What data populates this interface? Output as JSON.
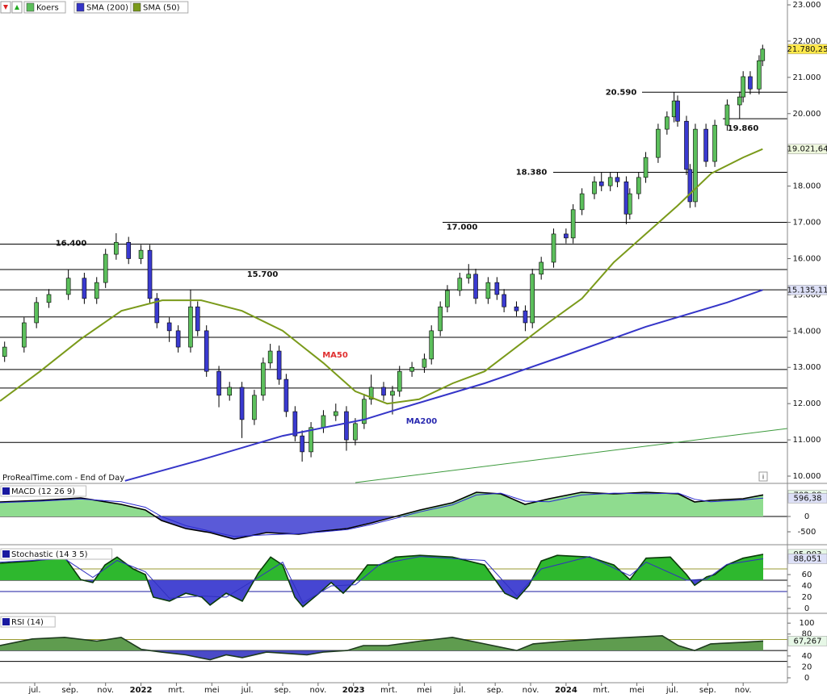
{
  "chart_data": [
    {
      "type": "candlestick",
      "name": "Koers",
      "up_color": "#5cbf5c",
      "down_color": "#3a3ad0",
      "source": "ProRealTime.com - End of Day",
      "xlim": [
        5.04,
        49.5
      ],
      "xticks": [
        {
          "value": 7,
          "label": "jul."
        },
        {
          "value": 9,
          "label": "sep."
        },
        {
          "value": 11,
          "label": "nov."
        },
        {
          "value": 13,
          "label": "2022"
        },
        {
          "value": 15,
          "label": "mrt."
        },
        {
          "value": 17,
          "label": "mei"
        },
        {
          "value": 19,
          "label": "jul."
        },
        {
          "value": 21,
          "label": "sep."
        },
        {
          "value": 23,
          "label": "nov."
        },
        {
          "value": 25,
          "label": "2023"
        },
        {
          "value": 27,
          "label": "mrt."
        },
        {
          "value": 29,
          "label": "mei"
        },
        {
          "value": 31,
          "label": "jul."
        },
        {
          "value": 33,
          "label": "sep."
        },
        {
          "value": 35,
          "label": "nov."
        },
        {
          "value": 37,
          "label": "2024"
        },
        {
          "value": 39,
          "label": "mrt."
        },
        {
          "value": 41,
          "label": "mei"
        },
        {
          "value": 43,
          "label": "jul."
        },
        {
          "value": 45,
          "label": "sep."
        },
        {
          "value": 47,
          "label": "nov."
        }
      ],
      "ylim": [
        9822,
        23134
      ],
      "yticks": [
        {
          "value": 23000,
          "label": "23.000"
        },
        {
          "value": 22000,
          "label": "22.000"
        },
        {
          "value": 21000,
          "label": "21.000"
        },
        {
          "value": 20000,
          "label": "20.000"
        },
        {
          "value": 19000,
          "label": "19.000"
        },
        {
          "value": 18000,
          "label": "18.000"
        },
        {
          "value": 17000,
          "label": "17.000"
        },
        {
          "value": 16000,
          "label": "16.000"
        },
        {
          "value": 15000,
          "label": "15.000"
        },
        {
          "value": 14000,
          "label": "14.000"
        },
        {
          "value": 13000,
          "label": "13.000"
        },
        {
          "value": 12000,
          "label": "12.000"
        },
        {
          "value": 11000,
          "label": "11.000"
        },
        {
          "value": 10000,
          "label": "10.000"
        }
      ],
      "x": [
        5.3,
        6.4,
        7.1,
        7.8,
        8.9,
        9.8,
        10.5,
        11,
        11.6,
        12.3,
        13,
        13.5,
        13.9,
        14.6,
        15.1,
        15.8,
        16.2,
        16.7,
        17.4,
        18,
        18.7,
        19.4,
        19.9,
        20.3,
        20.8,
        21.2,
        21.7,
        22.1,
        22.6,
        23.3,
        24,
        24.6,
        25.1,
        25.6,
        26,
        26.7,
        27.2,
        27.6,
        28.3,
        29,
        29.4,
        29.9,
        30.3,
        31,
        31.5,
        31.9,
        32.6,
        33.1,
        33.5,
        34.2,
        34.7,
        35.1,
        35.6,
        36.3,
        37,
        37.4,
        37.9,
        38.6,
        39,
        39.5,
        39.9,
        40.4,
        40.6,
        41.1,
        41.5,
        42.2,
        42.7,
        43.1,
        43.3,
        43.8,
        44,
        44.3,
        44.9,
        45.4,
        46.1,
        46.8,
        47,
        47.4,
        47.9,
        48.1
      ],
      "open": [
        13300,
        13560,
        14230,
        14790,
        15010,
        15460,
        14900,
        15340,
        16120,
        16450,
        16000,
        16230,
        14900,
        14230,
        14010,
        13560,
        14670,
        14010,
        12890,
        12230,
        12450,
        11560,
        12230,
        13120,
        13450,
        12670,
        11780,
        11110,
        10670,
        11340,
        11670,
        11780,
        11000,
        11450,
        12120,
        12450,
        12230,
        12340,
        12890,
        13000,
        13230,
        14010,
        14670,
        15120,
        15460,
        15570,
        14900,
        15340,
        15010,
        14670,
        14560,
        14230,
        15570,
        15900,
        16680,
        16570,
        17350,
        17790,
        18120,
        18010,
        18240,
        18120,
        17230,
        17790,
        18240,
        18790,
        19570,
        19910,
        20350,
        19790,
        18460,
        17570,
        19570,
        18680,
        19680,
        20240,
        20460,
        21020,
        20680,
        21460
      ],
      "high": [
        13710,
        14380,
        14940,
        15160,
        15700,
        15610,
        15490,
        16270,
        16700,
        16600,
        16380,
        16380,
        15050,
        14380,
        14160,
        15150,
        14820,
        14160,
        13040,
        12600,
        12600,
        12380,
        13270,
        13650,
        13600,
        12820,
        11930,
        11260,
        11490,
        11820,
        12000,
        11930,
        11600,
        12270,
        12800,
        12600,
        12490,
        13040,
        13150,
        13380,
        14160,
        14820,
        15270,
        15610,
        15850,
        15720,
        15490,
        15490,
        15160,
        14820,
        14710,
        15720,
        16050,
        16830,
        16830,
        17500,
        17940,
        18270,
        18380,
        18390,
        18390,
        18270,
        17940,
        18390,
        18940,
        19720,
        20060,
        20590,
        20500,
        19940,
        18610,
        19720,
        19720,
        19830,
        20390,
        20610,
        21170,
        21170,
        21610,
        21900
      ],
      "low": [
        13150,
        13410,
        14080,
        14640,
        14860,
        14750,
        14750,
        15190,
        15970,
        15850,
        15850,
        14750,
        14080,
        13700,
        13410,
        13410,
        13860,
        12740,
        11900,
        12080,
        11050,
        11410,
        12080,
        12970,
        12520,
        11630,
        10960,
        10400,
        10520,
        11190,
        11520,
        10700,
        10850,
        11300,
        11970,
        12080,
        11700,
        12190,
        12740,
        12850,
        13080,
        13860,
        14520,
        14970,
        15310,
        14750,
        14750,
        14860,
        14520,
        14410,
        14000,
        14080,
        15420,
        15750,
        16420,
        16420,
        17200,
        17640,
        17860,
        17860,
        17970,
        16950,
        17080,
        17640,
        18090,
        18640,
        19420,
        19760,
        19640,
        18310,
        17400,
        17420,
        18530,
        18530,
        19530,
        19860,
        20310,
        20530,
        20530,
        21310
      ],
      "close": [
        13560,
        14230,
        14790,
        15010,
        15460,
        14900,
        15340,
        16120,
        16450,
        16000,
        16230,
        14900,
        14230,
        14010,
        13560,
        14670,
        14010,
        12890,
        12230,
        12450,
        11560,
        12230,
        13120,
        13450,
        12670,
        11780,
        11110,
        10670,
        11340,
        11670,
        11780,
        11000,
        11450,
        12120,
        12450,
        12230,
        12340,
        12890,
        13000,
        13230,
        14010,
        14670,
        15120,
        15460,
        15570,
        14900,
        15340,
        15010,
        14670,
        14560,
        14230,
        15570,
        15900,
        16680,
        16570,
        17350,
        17790,
        18120,
        18010,
        18240,
        18120,
        17230,
        17790,
        18240,
        18790,
        19570,
        19910,
        20350,
        19790,
        18460,
        17570,
        19570,
        18680,
        19680,
        20240,
        20460,
        21020,
        20680,
        21460,
        21780
      ],
      "series": [
        {
          "name": "SMA (200)",
          "color": "#3535c8",
          "x": [
            12.1,
            16.4,
            21,
            25.6,
            27.8,
            32.4,
            37,
            41.5,
            46.1,
            48.1
          ],
          "values": [
            9870,
            10450,
            11110,
            11560,
            11890,
            12560,
            13340,
            14120,
            14790,
            15135.11
          ]
        },
        {
          "name": "SMA (50)",
          "color": "#7a9a1a",
          "x": [
            5.04,
            7.3,
            9.6,
            11.9,
            14.2,
            16.4,
            18.7,
            21,
            23.3,
            25.1,
            26.9,
            28.7,
            30.6,
            32.4,
            34.2,
            36,
            37.9,
            39.7,
            41.5,
            43.3,
            45.2,
            47,
            48.1
          ],
          "values": [
            12070,
            12890,
            13780,
            14560,
            14850,
            14850,
            14560,
            14010,
            13120,
            12340,
            12000,
            12120,
            12560,
            12890,
            13560,
            14230,
            14900,
            15900,
            16680,
            17460,
            18350,
            18790,
            19021.64
          ]
        }
      ],
      "levels": [
        {
          "value": 20590,
          "label": "20.590"
        },
        {
          "value": 19860,
          "label": "19.860"
        },
        {
          "value": 18380,
          "label": "18.380"
        },
        {
          "value": 17000,
          "label": "17.000"
        },
        {
          "value": 16400,
          "label": "16.400"
        },
        {
          "value": 15700,
          "label": "15.700"
        },
        15140,
        14390,
        13830,
        12940,
        12430,
        10930
      ],
      "annotations": [
        {
          "text": "MA50",
          "color": "#e03030"
        },
        {
          "text": "MA200",
          "color": "#2a2ab0"
        }
      ],
      "tags": [
        {
          "value": 21780.25,
          "label": "21.780,25"
        },
        {
          "value": 19021.64,
          "label": "19.021,64"
        },
        {
          "value": 15135.11,
          "label": "15.135,11"
        }
      ],
      "tag_colors": [
        "#ffe94a",
        "#eef7dd",
        "#dde0f7"
      ]
    },
    {
      "type": "area",
      "title": "MACD (12 26 9)",
      "ylim": [
        -842,
        1053
      ],
      "yticks": [
        -500,
        0
      ],
      "threshold": 0,
      "fill_above": "#8fdc8f",
      "fill_below": "#5a5ad8",
      "series": [
        {
          "color": "#000000",
          "x": [
            5.04,
            7.32,
            9.6,
            11.88,
            13.25,
            14.16,
            15.53,
            16.9,
            18.26,
            20.09,
            21.91,
            23.28,
            24.65,
            26.01,
            27.38,
            28.75,
            30.58,
            31.94,
            33.31,
            34.68,
            36.05,
            37.87,
            39.69,
            41.52,
            43.34,
            44.26,
            45.17,
            46.99,
            48.13
          ],
          "values": [
            474,
            526,
            605,
            395,
            210,
            -132,
            -395,
            -526,
            -737,
            -526,
            -579,
            -474,
            -395,
            -210,
            0,
            210,
            447,
            789,
            737,
            395,
            579,
            789,
            737,
            789,
            737,
            474,
            526,
            579,
            702.08
          ]
        },
        {
          "color": "#2a2ad0",
          "x": [
            5.04,
            7.32,
            9.6,
            11.88,
            13.25,
            14.16,
            15.53,
            16.9,
            18.26,
            20.09,
            21.91,
            23.28,
            24.65,
            26.01,
            27.38,
            28.75,
            30.58,
            31.94,
            33.31,
            34.68,
            36.05,
            37.87,
            39.69,
            41.52,
            43.34,
            44.26,
            45.17,
            46.99,
            48.13
          ],
          "values": [
            450,
            500,
            570,
            480,
            300,
            0,
            -300,
            -480,
            -650,
            -600,
            -560,
            -500,
            -430,
            -260,
            -60,
            150,
            380,
            700,
            760,
            500,
            480,
            700,
            760,
            740,
            760,
            560,
            480,
            540,
            596.38
          ]
        }
      ],
      "levels": [
        0
      ],
      "level_colors": [
        "#000000"
      ],
      "tags": [
        {
          "value": 702.08,
          "label": "702,08"
        },
        {
          "value": 596.38,
          "label": "596,38"
        }
      ],
      "tag_colors": [
        "#e6f7e6",
        "#dde0f7"
      ]
    },
    {
      "type": "area",
      "title": "Stochastic (14 3 5)",
      "ylim": [
        -5.7,
        108.6
      ],
      "yticks": [
        0,
        20,
        40,
        60
      ],
      "threshold": 50,
      "fill_above": "#2eb82e",
      "fill_below": "#4646d2",
      "series": [
        {
          "color": "#0a3a0a",
          "x": [
            5.04,
            6.86,
            8.69,
            9.6,
            10.28,
            10.97,
            11.65,
            12.56,
            13.25,
            13.7,
            14.61,
            15.53,
            16.44,
            16.9,
            17.81,
            18.72,
            19.63,
            20.32,
            21,
            21.69,
            22.14,
            23.05,
            23.74,
            24.42,
            25.1,
            25.79,
            26.47,
            27.38,
            28.75,
            30.58,
            32.4,
            33.54,
            34.23,
            34.91,
            35.6,
            36.5,
            38.33,
            39.7,
            40.61,
            41.52,
            42.89,
            43.8,
            44.26,
            44.94,
            45.4,
            46.08,
            46.99,
            48.13
          ],
          "values": [
            80,
            84,
            91,
            51,
            46,
            77,
            91,
            70,
            60,
            20,
            13,
            27,
            20,
            6,
            27,
            13,
            63,
            91,
            77,
            20,
            3,
            27,
            46,
            27,
            49,
            77,
            77,
            91,
            94,
            91,
            77,
            27,
            17,
            41,
            84,
            94,
            91,
            77,
            51,
            89,
            91,
            60,
            41,
            56,
            60,
            77,
            89,
            95.903
          ]
        },
        {
          "color": "#3030c0",
          "x": [
            5.04,
            8.69,
            10.28,
            11.65,
            13.25,
            14.61,
            16.44,
            17.81,
            19.63,
            21,
            22.14,
            23.74,
            25.1,
            26.47,
            28.75,
            32.4,
            34.23,
            35.6,
            38.33,
            40.61,
            41.52,
            43.8,
            44.94,
            46.08,
            48.13
          ],
          "values": [
            82,
            88,
            55,
            85,
            65,
            18,
            22,
            20,
            55,
            82,
            10,
            40,
            42,
            78,
            92,
            85,
            22,
            70,
            92,
            58,
            82,
            50,
            52,
            78,
            88.051
          ]
        }
      ],
      "levels": [
        70,
        50,
        30
      ],
      "level_colors": [
        "#9a9a30",
        "#000000",
        "#1a1aa0"
      ],
      "tags": [
        {
          "value": 95.903,
          "label": "95,903"
        },
        {
          "value": 88.051,
          "label": "88,051"
        }
      ],
      "tag_colors": [
        "#e6f7e6",
        "#dde0f7"
      ]
    },
    {
      "type": "area",
      "title": "RSI (14)",
      "ylim": [
        -7.4,
        115
      ],
      "yticks": [
        0,
        20,
        40,
        80,
        100
      ],
      "threshold": 50,
      "fill_above": "#5f9c4f",
      "fill_below": "#4a4ac8",
      "series": [
        {
          "color": "#1e3a1e",
          "x": [
            5.04,
            6.86,
            8.69,
            10.51,
            11.88,
            13.02,
            14.16,
            15.53,
            16.9,
            17.81,
            18.72,
            20.09,
            21.46,
            22.37,
            23.28,
            24.65,
            25.56,
            26.93,
            28.75,
            30.58,
            32.4,
            34.22,
            35.14,
            36.96,
            38.78,
            40.61,
            42.43,
            43.34,
            44.26,
            45.17,
            46.99,
            48.13
          ],
          "values": [
            59,
            71,
            74,
            67,
            74,
            52,
            47,
            42,
            33,
            42,
            37,
            47,
            44,
            42,
            47,
            50,
            59,
            59,
            67,
            74,
            62,
            50,
            62,
            67,
            71,
            74,
            77,
            59,
            50,
            62,
            65,
            67.267
          ]
        }
      ],
      "levels": [
        70,
        50,
        30
      ],
      "level_colors": [
        "#9a9a30",
        "#000000",
        "#000000"
      ],
      "tags": [
        {
          "value": 67.267,
          "label": "67,267"
        }
      ],
      "tag_colors": [
        "#e6f7e6"
      ]
    }
  ]
}
